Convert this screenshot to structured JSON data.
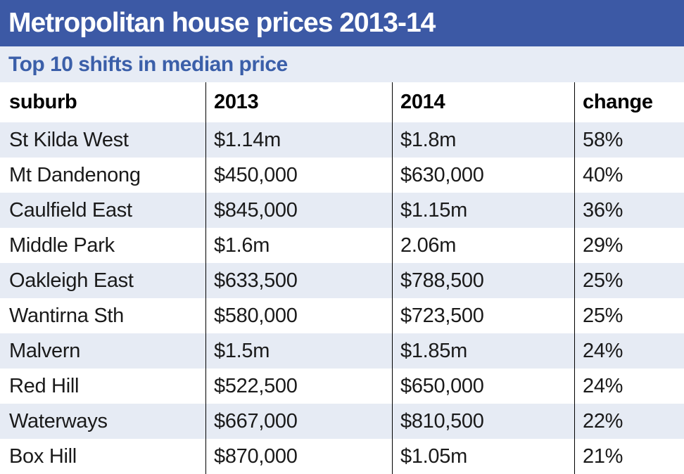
{
  "chart_data": {
    "type": "table",
    "title": "Metropolitan house prices 2013-14",
    "subtitle": "Top 10 shifts in median price",
    "columns": [
      "suburb",
      "2013",
      "2014",
      "change"
    ],
    "rows": [
      [
        "St Kilda West",
        "$1.14m",
        "$1.8m",
        "58%"
      ],
      [
        "Mt Dandenong",
        "$450,000",
        "$630,000",
        "40%"
      ],
      [
        "Caulfield East",
        "$845,000",
        "$1.15m",
        "36%"
      ],
      [
        "Middle Park",
        "$1.6m",
        "2.06m",
        "29%"
      ],
      [
        "Oakleigh East",
        "$633,500",
        "$788,500",
        "25%"
      ],
      [
        "Wantirna Sth",
        "$580,000",
        "$723,500",
        "25%"
      ],
      [
        "Malvern",
        "$1.5m",
        "$1.85m",
        "24%"
      ],
      [
        "Red Hill",
        "$522,500",
        "$650,000",
        "24%"
      ],
      [
        "Waterways",
        "$667,000",
        "$810,500",
        "22%"
      ],
      [
        "Box Hill",
        "$870,000",
        "$1.05m",
        "21%"
      ]
    ]
  },
  "colors": {
    "title_band_bg": "#3c59a5",
    "title_text": "#ffffff",
    "subtitle_band_bg": "#e7ecf5",
    "subtitle_text": "#3b5fa9",
    "row_alt_bg": "#e6ebf4",
    "divider": "#000000"
  }
}
